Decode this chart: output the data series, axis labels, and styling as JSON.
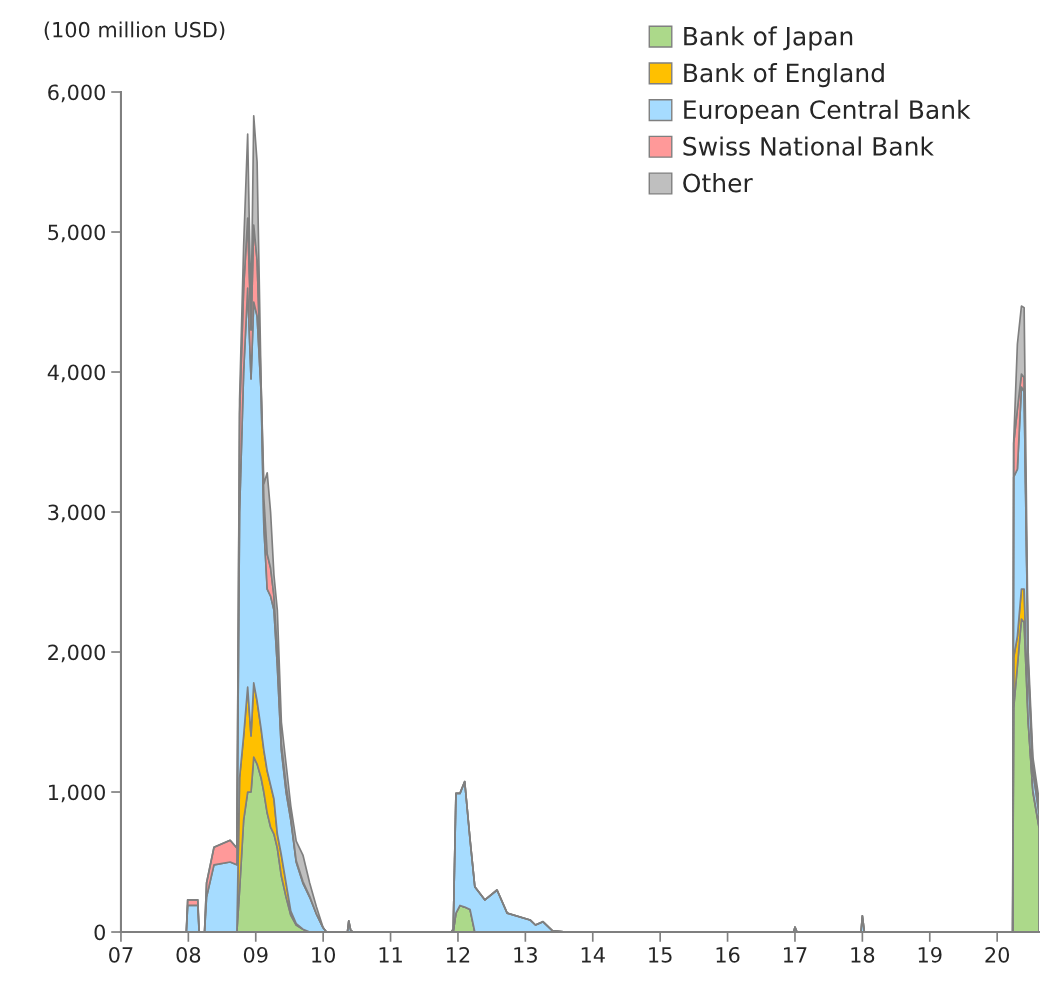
{
  "chart_data": {
    "type": "area",
    "stacked": true,
    "ylabel": "(100 million USD)",
    "x": [
      2007.0,
      2007.97,
      2007.99,
      2008.14,
      2008.16,
      2008.24,
      2008.27,
      2008.38,
      2008.62,
      2008.72,
      2008.76,
      2008.82,
      2008.88,
      2008.93,
      2008.97,
      2009.02,
      2009.08,
      2009.12,
      2009.17,
      2009.22,
      2009.27,
      2009.32,
      2009.38,
      2009.45,
      2009.52,
      2009.6,
      2009.7,
      2009.8,
      2009.9,
      2010.0,
      2010.05,
      2010.36,
      2010.38,
      2010.41,
      2010.45,
      2011.9,
      2011.93,
      2011.97,
      2012.03,
      2012.1,
      2012.18,
      2012.25,
      2012.4,
      2012.58,
      2012.73,
      2013.07,
      2013.15,
      2013.26,
      2013.4,
      2013.6,
      2016.98,
      2017.0,
      2017.03,
      2017.98,
      2018.0,
      2018.03,
      2020.23,
      2020.245,
      2020.3,
      2020.36,
      2020.4,
      2020.46,
      2020.53,
      2020.62
    ],
    "series": [
      {
        "name": "Bank of Japan",
        "color": "#acd98a",
        "values": [
          0,
          0,
          0,
          0,
          0,
          0,
          0,
          0,
          0,
          0,
          300,
          800,
          1000,
          1000,
          1250,
          1200,
          1100,
          1000,
          850,
          750,
          700,
          600,
          400,
          250,
          120,
          50,
          20,
          0,
          0,
          0,
          0,
          0,
          0,
          0,
          0,
          0,
          0,
          135,
          190,
          178,
          160,
          0,
          0,
          0,
          0,
          0,
          0,
          0,
          0,
          0,
          0,
          0,
          0,
          0,
          0,
          0,
          0,
          1600,
          1900,
          2236,
          2210,
          1500,
          1000,
          750
        ]
      },
      {
        "name": "Bank of England",
        "color": "#ffc000",
        "values": [
          0,
          0,
          0,
          0,
          0,
          0,
          0,
          0,
          0,
          0,
          800,
          600,
          750,
          400,
          530,
          450,
          350,
          300,
          300,
          300,
          250,
          100,
          150,
          100,
          30,
          10,
          0,
          0,
          0,
          0,
          0,
          0,
          0,
          0,
          0,
          0,
          0,
          0,
          0,
          0,
          0,
          0,
          0,
          0,
          0,
          0,
          0,
          0,
          0,
          0,
          0,
          0,
          0,
          0,
          0,
          0,
          0,
          360,
          214,
          214,
          240,
          20,
          10,
          10
        ]
      },
      {
        "name": "European Central Bank",
        "color": "#a6dcff",
        "values": [
          0,
          0,
          190,
          190,
          0,
          0,
          250,
          480,
          500,
          480,
          1900,
          2600,
          2850,
          2550,
          2720,
          2750,
          2400,
          1600,
          1300,
          1350,
          1350,
          1200,
          750,
          650,
          650,
          440,
          330,
          250,
          130,
          30,
          0,
          0,
          80,
          10,
          0,
          0,
          20,
          855,
          800,
          897,
          497,
          324,
          229,
          300,
          135,
          86,
          50,
          74,
          10,
          0,
          0,
          35,
          0,
          0,
          115,
          0,
          0,
          1290,
          1193,
          1443,
          1410,
          380,
          140,
          90
        ]
      },
      {
        "name": "Swiss National Bank",
        "color": "#ff9999",
        "values": [
          0,
          0,
          40,
          40,
          0,
          0,
          100,
          125,
          155,
          120,
          700,
          600,
          500,
          350,
          550,
          400,
          50,
          200,
          250,
          200,
          100,
          100,
          50,
          50,
          20,
          10,
          10,
          5,
          0,
          0,
          0,
          0,
          0,
          0,
          0,
          0,
          0,
          0,
          0,
          0,
          0,
          0,
          0,
          0,
          0,
          0,
          0,
          0,
          0,
          0,
          0,
          0,
          0,
          0,
          0,
          0,
          0,
          240,
          429,
          93,
          100,
          20,
          50,
          50
        ]
      },
      {
        "name": "Other",
        "color": "#bfbfbf",
        "values": [
          0,
          0,
          0,
          0,
          0,
          0,
          0,
          0,
          0,
          0,
          100,
          300,
          600,
          100,
          780,
          700,
          0,
          100,
          580,
          400,
          150,
          300,
          150,
          150,
          80,
          140,
          190,
          95,
          50,
          0,
          0,
          0,
          0,
          0,
          0,
          0,
          0,
          0,
          0,
          0,
          0,
          0,
          0,
          0,
          0,
          0,
          0,
          0,
          0,
          0,
          0,
          0,
          0,
          0,
          0,
          0,
          0,
          10,
          464,
          485,
          500,
          80,
          50,
          50
        ]
      }
    ],
    "xlim": [
      2007,
      2020.62
    ],
    "xticks": [
      {
        "value": 2007,
        "label": "07"
      },
      {
        "value": 2008,
        "label": "08"
      },
      {
        "value": 2009,
        "label": "09"
      },
      {
        "value": 2010,
        "label": "10"
      },
      {
        "value": 2011,
        "label": "11"
      },
      {
        "value": 2012,
        "label": "12"
      },
      {
        "value": 2013,
        "label": "13"
      },
      {
        "value": 2014,
        "label": "14"
      },
      {
        "value": 2015,
        "label": "15"
      },
      {
        "value": 2016,
        "label": "16"
      },
      {
        "value": 2017,
        "label": "17"
      },
      {
        "value": 2018,
        "label": "18"
      },
      {
        "value": 2019,
        "label": "19"
      },
      {
        "value": 2020,
        "label": "20"
      }
    ],
    "ylim": [
      0,
      6000
    ],
    "yticks": [
      0,
      {
        "value": 1000,
        "label": "1,000"
      },
      {
        "value": 2000,
        "label": "2,000"
      },
      {
        "value": 3000,
        "label": "3,000"
      },
      {
        "value": 4000,
        "label": "4,000"
      },
      {
        "value": 5000,
        "label": "5,000"
      },
      {
        "value": 6000,
        "label": "6,000"
      }
    ],
    "grid": false,
    "legend": "top right"
  }
}
